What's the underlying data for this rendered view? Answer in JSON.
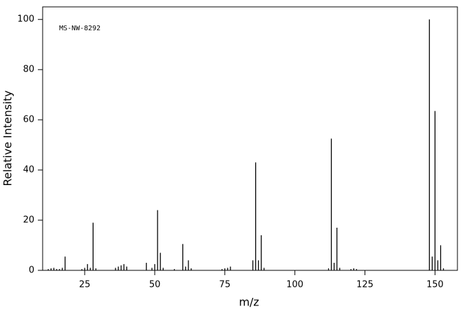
{
  "chart_data": {
    "type": "stick",
    "annotation": "MS-NW-8292",
    "x_label": "m/z",
    "y_label": "Relative Intensity",
    "x": [
      12,
      13,
      14,
      15,
      16,
      17,
      18,
      24,
      25,
      26,
      27,
      28,
      29,
      36,
      37,
      38,
      39,
      40,
      47,
      49,
      50,
      51,
      52,
      53,
      57,
      60,
      61,
      62,
      63,
      74,
      75,
      76,
      77,
      85,
      86,
      87,
      88,
      89,
      112,
      113,
      114,
      115,
      116,
      120,
      121,
      122,
      148,
      149,
      150,
      151,
      152,
      153
    ],
    "values": [
      0.5,
      0.8,
      1,
      0.5,
      0.5,
      1,
      5.5,
      0.5,
      1,
      2.5,
      1,
      19,
      0.8,
      1,
      1.5,
      2,
      2.5,
      1.5,
      3,
      1,
      2.5,
      24,
      7,
      1,
      0.5,
      10.5,
      1.5,
      4,
      0.8,
      0.5,
      0.8,
      1,
      1.5,
      4,
      43,
      4,
      14,
      1,
      0.8,
      52.5,
      3,
      17,
      1,
      0.5,
      0.8,
      0.5,
      100,
      5.5,
      63.5,
      4,
      10,
      0.8
    ],
    "color": "#000000",
    "xlim": [
      10,
      158
    ],
    "xticks": [
      25,
      50,
      75,
      100,
      125,
      150
    ],
    "ylim": [
      0,
      105
    ],
    "yticks": [
      0,
      20,
      40,
      60,
      80,
      100
    ]
  }
}
